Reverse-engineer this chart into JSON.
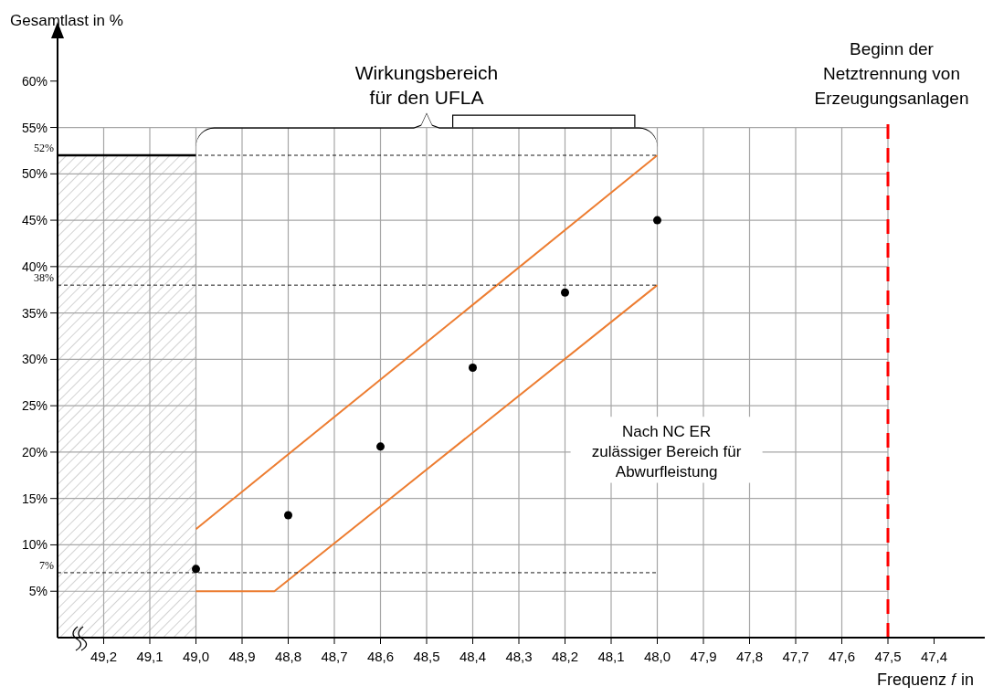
{
  "chart_data": {
    "type": "scatter",
    "xlabel": "Frequenz 𝑓 in",
    "ylabel": "Gesamtlast in %",
    "xlim": [
      49.3,
      47.3
    ],
    "ylim": [
      0,
      65
    ],
    "xticks": [
      {
        "value": 49.2,
        "label": "49,2"
      },
      {
        "value": 49.1,
        "label": "49,1"
      },
      {
        "value": 49.0,
        "label": "49,0"
      },
      {
        "value": 48.9,
        "label": "48,9"
      },
      {
        "value": 48.8,
        "label": "48,8"
      },
      {
        "value": 48.7,
        "label": "48,7"
      },
      {
        "value": 48.6,
        "label": "48,6"
      },
      {
        "value": 48.5,
        "label": "48,5"
      },
      {
        "value": 48.4,
        "label": "48,4"
      },
      {
        "value": 48.3,
        "label": "48,3"
      },
      {
        "value": 48.2,
        "label": "48,2"
      },
      {
        "value": 48.1,
        "label": "48,1"
      },
      {
        "value": 48.0,
        "label": "48,0"
      },
      {
        "value": 47.9,
        "label": "47,9"
      },
      {
        "value": 47.8,
        "label": "47,8"
      },
      {
        "value": 47.7,
        "label": "47,7"
      },
      {
        "value": 47.6,
        "label": "47,6"
      },
      {
        "value": 47.5,
        "label": "47,5"
      },
      {
        "value": 47.4,
        "label": "47,4"
      }
    ],
    "yticks": [
      {
        "value": 5,
        "label": "5%"
      },
      {
        "value": 10,
        "label": "10%"
      },
      {
        "value": 15,
        "label": "15%"
      },
      {
        "value": 20,
        "label": "20%"
      },
      {
        "value": 25,
        "label": "25%"
      },
      {
        "value": 30,
        "label": "30%"
      },
      {
        "value": 35,
        "label": "35%"
      },
      {
        "value": 40,
        "label": "40%"
      },
      {
        "value": 45,
        "label": "45%"
      },
      {
        "value": 50,
        "label": "50%"
      },
      {
        "value": 55,
        "label": "55%"
      },
      {
        "value": 60,
        "label": "60%"
      }
    ],
    "grid": true,
    "marker": "circle",
    "series": [
      {
        "type": "area",
        "color": "#a6a6a6",
        "marker": "none",
        "x": [
          49.3,
          49.0
        ],
        "values": [
          52,
          52
        ]
      },
      {
        "type": "line",
        "color": "#ed7d31",
        "marker": "none",
        "x": [
          49.0,
          48.0
        ],
        "values": [
          11.7,
          52
        ]
      },
      {
        "type": "line",
        "color": "#ed7d31",
        "marker": "none",
        "x": [
          49.0,
          48.83,
          48.0
        ],
        "values": [
          5,
          5,
          38
        ]
      },
      {
        "color": "#000000",
        "x": [
          49.0,
          48.8,
          48.6,
          48.4,
          48.2,
          48.0
        ],
        "values": [
          7.4,
          13.2,
          20.6,
          29.1,
          37.2,
          45
        ]
      }
    ],
    "ref_lines": [
      {
        "axis": "y",
        "value": 52,
        "label": "52%",
        "color": "#000000",
        "line_style": "dashed"
      },
      {
        "axis": "y",
        "value": 38,
        "label": "38%",
        "color": "#000000",
        "line_style": "dashed"
      },
      {
        "axis": "y",
        "value": 7,
        "label": "7%",
        "color": "#000000",
        "line_style": "dashed"
      },
      {
        "axis": "x",
        "value": 47.5,
        "label": "Beginn der\nNetztrennung von\nErzeugungsanlagen",
        "color": "#ff0000",
        "line_style": "dashed"
      }
    ],
    "annotations": [
      "Wirkungsbereich\nfür den UFLA",
      "Nach NC ER\nzulässiger Bereich für\nAbwurfleistung"
    ]
  }
}
